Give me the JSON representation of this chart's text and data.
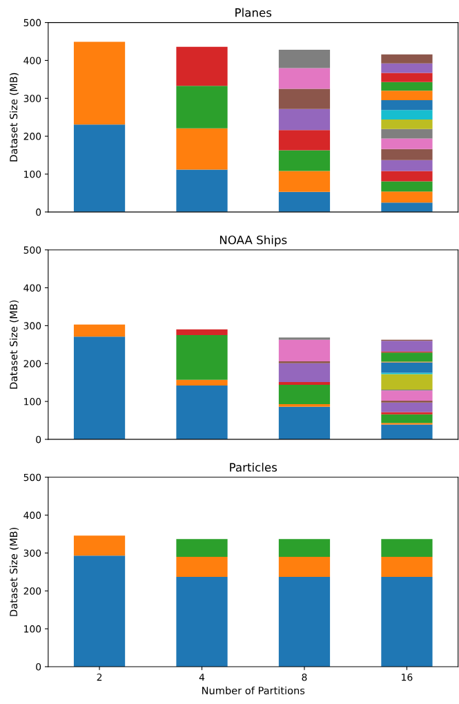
{
  "chart_data": [
    {
      "type": "bar",
      "stacked": true,
      "title": "Planes",
      "ylabel": "Dataset Size (MB)",
      "categories": [
        "2",
        "4",
        "8",
        "16"
      ],
      "ylim": [
        0,
        500
      ],
      "yticks": [
        0,
        100,
        200,
        300,
        400,
        500
      ],
      "tick_labels": "y",
      "series": [
        {
          "color": "#1f77b4",
          "values": [
            231,
            112,
            53,
            25
          ]
        },
        {
          "color": "#ff7f0e",
          "values": [
            218,
            109,
            55,
            29
          ]
        },
        {
          "color": "#2ca02c",
          "values": [
            null,
            112,
            55,
            27
          ]
        },
        {
          "color": "#d62728",
          "values": [
            null,
            103,
            53,
            27
          ]
        },
        {
          "color": "#9467bd",
          "values": [
            null,
            null,
            56,
            29
          ]
        },
        {
          "color": "#8c564b",
          "values": [
            null,
            null,
            53,
            29
          ]
        },
        {
          "color": "#e377c2",
          "values": [
            null,
            null,
            55,
            28
          ]
        },
        {
          "color": "#7f7f7f",
          "values": [
            null,
            null,
            48,
            25
          ]
        },
        {
          "color": "#bcbd22",
          "values": [
            null,
            null,
            null,
            25
          ]
        },
        {
          "color": "#17becf",
          "values": [
            null,
            null,
            null,
            25
          ]
        },
        {
          "color": "#1f77b4",
          "values": [
            null,
            null,
            null,
            26
          ]
        },
        {
          "color": "#ff7f0e",
          "values": [
            null,
            null,
            null,
            25
          ]
        },
        {
          "color": "#2ca02c",
          "values": [
            null,
            null,
            null,
            23
          ]
        },
        {
          "color": "#d62728",
          "values": [
            null,
            null,
            null,
            24
          ]
        },
        {
          "color": "#9467bd",
          "values": [
            null,
            null,
            null,
            25
          ]
        },
        {
          "color": "#8c564b",
          "values": [
            null,
            null,
            null,
            24
          ]
        }
      ]
    },
    {
      "type": "bar",
      "stacked": true,
      "title": "NOAA Ships",
      "ylabel": "Dataset Size (MB)",
      "categories": [
        "2",
        "4",
        "8",
        "16"
      ],
      "ylim": [
        0,
        500
      ],
      "yticks": [
        0,
        100,
        200,
        300,
        400,
        500
      ],
      "tick_labels": "y",
      "series": [
        {
          "color": "#1f77b4",
          "values": [
            271,
            142,
            86,
            39
          ]
        },
        {
          "color": "#ff7f0e",
          "values": [
            32,
            15,
            7,
            4
          ]
        },
        {
          "color": "#2ca02c",
          "values": [
            null,
            118,
            51,
            23
          ]
        },
        {
          "color": "#d62728",
          "values": [
            null,
            15,
            7,
            6
          ]
        },
        {
          "color": "#9467bd",
          "values": [
            null,
            null,
            50,
            25
          ]
        },
        {
          "color": "#8c564b",
          "values": [
            null,
            null,
            5,
            5
          ]
        },
        {
          "color": "#e377c2",
          "values": [
            null,
            null,
            57,
            27
          ]
        },
        {
          "color": "#7f7f7f",
          "values": [
            null,
            null,
            6,
            2
          ]
        },
        {
          "color": "#bcbd22",
          "values": [
            null,
            null,
            null,
            41
          ]
        },
        {
          "color": "#17becf",
          "values": [
            null,
            null,
            null,
            4
          ]
        },
        {
          "color": "#1f77b4",
          "values": [
            null,
            null,
            null,
            27
          ]
        },
        {
          "color": "#ff7f0e",
          "values": [
            null,
            null,
            null,
            2
          ]
        },
        {
          "color": "#2ca02c",
          "values": [
            null,
            null,
            null,
            24
          ]
        },
        {
          "color": "#d62728",
          "values": [
            null,
            null,
            null,
            3
          ]
        },
        {
          "color": "#9467bd",
          "values": [
            null,
            null,
            null,
            28
          ]
        },
        {
          "color": "#8c564b",
          "values": [
            null,
            null,
            null,
            3
          ]
        }
      ]
    },
    {
      "type": "bar",
      "stacked": true,
      "title": "Particles",
      "xlabel": "Number of Partitions",
      "ylabel": "Dataset Size (MB)",
      "categories": [
        "2",
        "4",
        "8",
        "16"
      ],
      "ylim": [
        0,
        500
      ],
      "yticks": [
        0,
        100,
        200,
        300,
        400,
        500
      ],
      "series": [
        {
          "color": "#1f77b4",
          "values": [
            293,
            237,
            237,
            237
          ]
        },
        {
          "color": "#ff7f0e",
          "values": [
            53,
            53,
            53,
            53
          ]
        },
        {
          "color": "#2ca02c",
          "values": [
            null,
            47,
            47,
            47
          ]
        }
      ]
    }
  ]
}
